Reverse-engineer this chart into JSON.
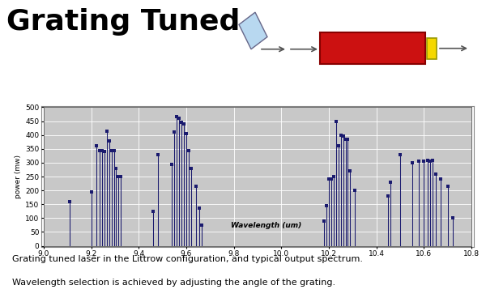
{
  "title": "Grating Tuned",
  "xlabel": "Wavelength (um)",
  "ylabel": "power (mw)",
  "xlim": [
    9.0,
    10.8
  ],
  "ylim": [
    0,
    500
  ],
  "xticks": [
    9.0,
    9.2,
    9.4,
    9.6,
    9.8,
    10.0,
    10.2,
    10.4,
    10.6,
    10.8
  ],
  "yticks": [
    0,
    50,
    100,
    150,
    200,
    250,
    300,
    350,
    400,
    450,
    500
  ],
  "background_color": "#c8c8c8",
  "line_color": "#1a1a6e",
  "marker_color": "#1a1a6e",
  "caption_line1": "Grating tuned laser in the Littrow configuration, and typical output spectrum.",
  "caption_line2": "Wavelength selection is achieved by adjusting the angle of the grating.",
  "spectrum_data": [
    [
      9.11,
      160
    ],
    [
      9.2,
      195
    ],
    [
      9.22,
      360
    ],
    [
      9.235,
      345
    ],
    [
      9.245,
      345
    ],
    [
      9.255,
      340
    ],
    [
      9.265,
      415
    ],
    [
      9.275,
      380
    ],
    [
      9.285,
      345
    ],
    [
      9.295,
      345
    ],
    [
      9.305,
      280
    ],
    [
      9.315,
      250
    ],
    [
      9.325,
      250
    ],
    [
      9.46,
      125
    ],
    [
      9.48,
      330
    ],
    [
      9.54,
      295
    ],
    [
      9.55,
      410
    ],
    [
      9.56,
      465
    ],
    [
      9.57,
      460
    ],
    [
      9.58,
      445
    ],
    [
      9.59,
      440
    ],
    [
      9.6,
      405
    ],
    [
      9.61,
      345
    ],
    [
      9.62,
      280
    ],
    [
      9.64,
      215
    ],
    [
      9.655,
      135
    ],
    [
      9.665,
      75
    ],
    [
      10.18,
      90
    ],
    [
      10.19,
      145
    ],
    [
      10.2,
      240
    ],
    [
      10.21,
      240
    ],
    [
      10.22,
      250
    ],
    [
      10.23,
      450
    ],
    [
      10.24,
      360
    ],
    [
      10.25,
      400
    ],
    [
      10.26,
      395
    ],
    [
      10.27,
      385
    ],
    [
      10.28,
      385
    ],
    [
      10.29,
      270
    ],
    [
      10.31,
      200
    ],
    [
      10.45,
      180
    ],
    [
      10.46,
      230
    ],
    [
      10.5,
      330
    ],
    [
      10.55,
      300
    ],
    [
      10.58,
      305
    ],
    [
      10.6,
      305
    ],
    [
      10.615,
      310
    ],
    [
      10.625,
      305
    ],
    [
      10.635,
      310
    ],
    [
      10.65,
      260
    ],
    [
      10.67,
      240
    ],
    [
      10.7,
      215
    ],
    [
      10.72,
      100
    ]
  ]
}
